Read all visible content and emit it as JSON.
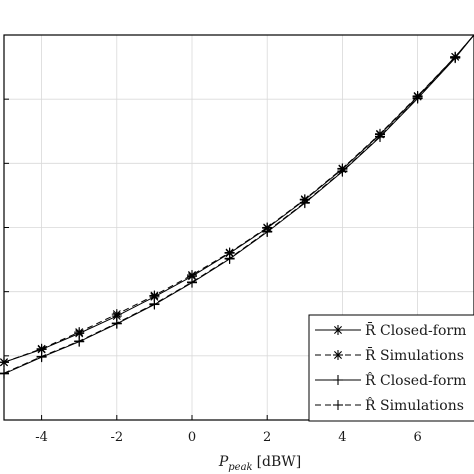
{
  "chart_data": {
    "type": "line",
    "xlabel_base": "P",
    "xlabel_sub": "peak",
    "xlabel_unit": "[dBW]",
    "x_ticks": [
      -4,
      -2,
      0,
      2,
      4,
      6
    ],
    "x_tick_labels": [
      "-4",
      "-2",
      "0",
      "2",
      "4",
      "6"
    ],
    "xlim": [
      -5,
      7.5
    ],
    "ylim": [
      0,
      6
    ],
    "grid": true,
    "legend_position": "bottom-right",
    "series": [
      {
        "name": "R̄ Closed-form",
        "marker": "asterisk",
        "dash": "solid",
        "x": [
          -5,
          -4,
          -3,
          -2,
          -1,
          0,
          1,
          2,
          3,
          4,
          5,
          6,
          7,
          7.5
        ],
        "y": [
          0.9,
          1.1,
          1.35,
          1.62,
          1.92,
          2.24,
          2.6,
          2.99,
          3.43,
          3.91,
          4.45,
          5.04,
          5.66,
          6.0
        ]
      },
      {
        "name": "R̄ Simulations",
        "marker": "asterisk",
        "dash": "dashed",
        "x": [
          -5,
          -4,
          -3,
          -2,
          -1,
          0,
          1,
          2,
          3,
          4,
          5,
          6,
          7,
          7.5
        ],
        "y": [
          0.9,
          1.11,
          1.37,
          1.65,
          1.94,
          2.26,
          2.61,
          3.0,
          3.44,
          3.92,
          4.46,
          5.05,
          5.66,
          6.0
        ]
      },
      {
        "name": "R̂ Closed-form",
        "marker": "plus",
        "dash": "solid",
        "x": [
          -5,
          -4,
          -3,
          -2,
          -1,
          0,
          1,
          2,
          3,
          4,
          5,
          6,
          7,
          7.5
        ],
        "y": [
          0.72,
          0.98,
          1.22,
          1.5,
          1.8,
          2.14,
          2.51,
          2.93,
          3.38,
          3.87,
          4.41,
          5.01,
          5.64,
          6.0
        ]
      },
      {
        "name": "R̂ Simulations",
        "marker": "plus",
        "dash": "dashed",
        "x": [
          -5,
          -4,
          -3,
          -2,
          -1,
          0,
          1,
          2,
          3,
          4,
          5,
          6,
          7,
          7.5
        ],
        "y": [
          0.73,
          0.99,
          1.23,
          1.51,
          1.81,
          2.15,
          2.52,
          2.94,
          3.39,
          3.88,
          4.42,
          5.02,
          5.65,
          6.0
        ]
      }
    ]
  }
}
